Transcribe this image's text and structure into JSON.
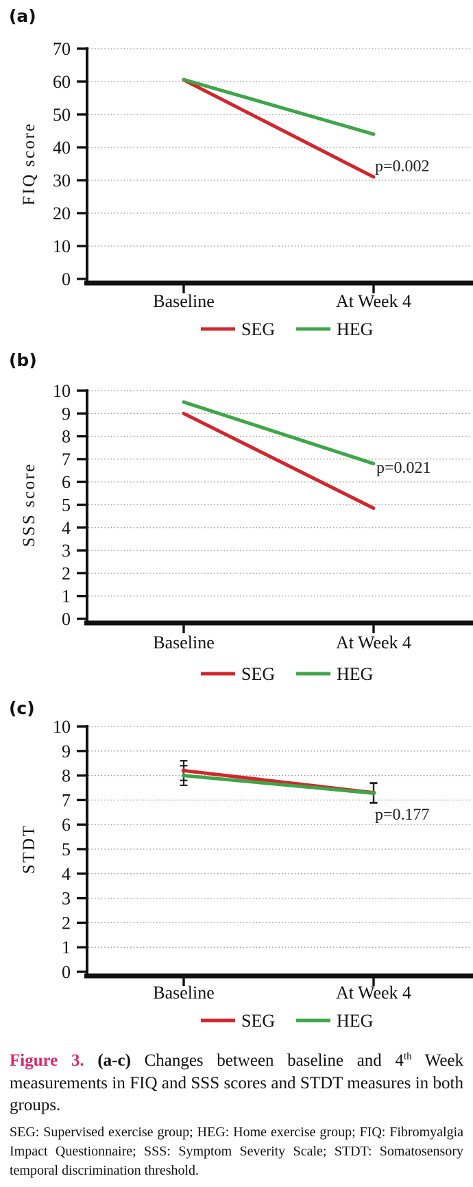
{
  "figure": {
    "panels": [
      {
        "label": "(a)"
      },
      {
        "label": "(b)"
      },
      {
        "label": "(c)"
      }
    ],
    "caption": {
      "figure_label": "Figure 3.",
      "panel_range": "(a-c)",
      "text_before_sup": "Changes between baseline and 4",
      "superscript": "th",
      "text_after_sup": " Week measurements in FIQ and SSS scores and STDT measures in both groups."
    },
    "footnote": "SEG: Supervised exercise group; HEG: Home exercise group; FIQ: Fibromyalgia Impact Questionnaire; SSS: Symptom Severity Scale; STDT: Somatosensory temporal discrimination threshold.",
    "accent_color": "#d62a72",
    "axis_color": "#111111",
    "gridline_color": "#909090"
  },
  "chart_data": [
    {
      "type": "line",
      "panel": "(a)",
      "categories": [
        "Baseline",
        "At Week 4"
      ],
      "series": [
        {
          "name": "SEG",
          "color": "#d2262c",
          "values": [
            60.5,
            31
          ]
        },
        {
          "name": "HEG",
          "color": "#3ea648",
          "values": [
            60.6,
            44
          ]
        }
      ],
      "title": "",
      "xlabel": "",
      "ylabel": "FIQ score",
      "ylim": [
        0,
        70
      ],
      "ytick_step": 10,
      "grid": "horizontal-dotted",
      "legend_position": "bottom",
      "annotation": "p=0.002"
    },
    {
      "type": "line",
      "panel": "(b)",
      "categories": [
        "Baseline",
        "At Week 4"
      ],
      "series": [
        {
          "name": "SEG",
          "color": "#d2262c",
          "values": [
            9.0,
            4.85
          ]
        },
        {
          "name": "HEG",
          "color": "#3ea648",
          "values": [
            9.5,
            6.8
          ]
        }
      ],
      "title": "",
      "xlabel": "",
      "ylabel": "SSS score",
      "ylim": [
        0,
        10
      ],
      "ytick_step": 1,
      "grid": "horizontal-dotted",
      "legend_position": "bottom",
      "annotation": "p=0.021"
    },
    {
      "type": "line",
      "panel": "(c)",
      "categories": [
        "Baseline",
        "At Week 4"
      ],
      "series": [
        {
          "name": "SEG",
          "color": "#d2262c",
          "values": [
            8.2,
            7.3
          ],
          "errors": [
            0.4,
            0.4
          ]
        },
        {
          "name": "HEG",
          "color": "#3ea648",
          "values": [
            8.0,
            7.28
          ],
          "errors": [
            0.4,
            0.4
          ]
        }
      ],
      "title": "",
      "xlabel": "",
      "ylabel": "STDT",
      "ylim": [
        0,
        10
      ],
      "ytick_step": 1,
      "grid": "horizontal-dotted",
      "legend_position": "bottom",
      "annotation": "p=0.177"
    }
  ]
}
